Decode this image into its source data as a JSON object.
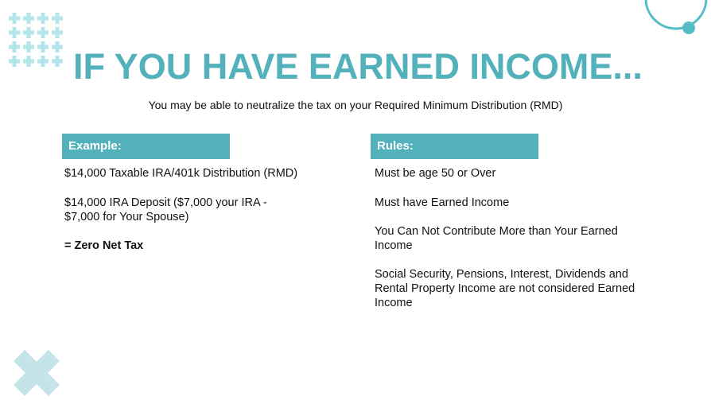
{
  "slide": {
    "title": "IF YOU HAVE EARNED INCOME...",
    "subtitle": "You may be able to neutralize the tax on your Required Minimum Distribution (RMD)",
    "example": {
      "header": "Example:",
      "items": [
        "$14,000 Taxable IRA/401k Distribution (RMD)",
        "$14,000 IRA Deposit ($7,000 your IRA - $7,000 for Your Spouse)",
        "= Zero Net Tax"
      ]
    },
    "rules": {
      "header": "Rules:",
      "items": [
        "Must be age 50 or Over",
        "Must have Earned Income",
        "You Can Not Contribute More than Your Earned Income",
        "Social Security, Pensions, Interest, Dividends and Rental Property Income are not considered Earned Income"
      ]
    }
  },
  "colors": {
    "accent": "#52b1bb",
    "light_accent": "#b3e5ea",
    "x_mark": "#c4e4ea"
  }
}
